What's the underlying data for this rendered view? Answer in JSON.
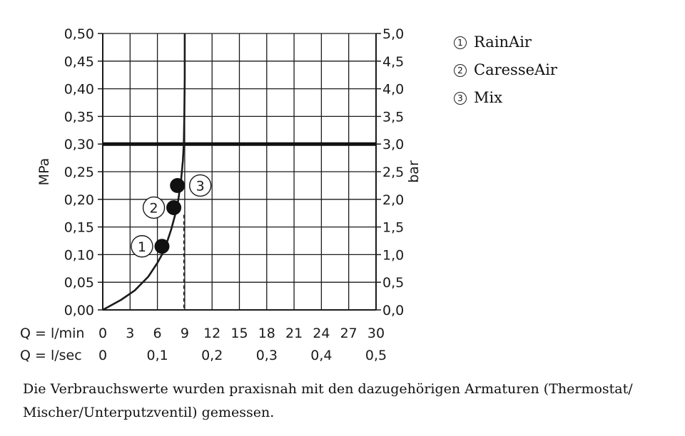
{
  "chart_data": {
    "type": "line",
    "y_axis_left": {
      "label": "MPa",
      "range": [
        0,
        0.5
      ],
      "ticks": [
        "0,00",
        "0,05",
        "0,10",
        "0,15",
        "0,20",
        "0,25",
        "0,30",
        "0,35",
        "0,40",
        "0,45",
        "0,50"
      ]
    },
    "y_axis_right": {
      "label": "bar",
      "range": [
        0,
        5
      ],
      "ticks": [
        "0,0",
        "0,5",
        "1,0",
        "1,5",
        "2,0",
        "2,5",
        "3,0",
        "3,5",
        "4,0",
        "4,5",
        "5,0"
      ]
    },
    "x_axis_min": {
      "label": "Q = l/min",
      "range": [
        0,
        30
      ],
      "ticks": [
        "0",
        "3",
        "6",
        "9",
        "12",
        "15",
        "18",
        "21",
        "24",
        "27",
        "30"
      ]
    },
    "x_axis_sec": {
      "label": "Q = l/sec",
      "ticks": [
        "0",
        "0,1",
        "0,2",
        "0,3",
        "0,4",
        "0,5"
      ],
      "tick_values_lmin": [
        0,
        6,
        12,
        18,
        24,
        30
      ]
    },
    "grid": true,
    "reference_line_mpa": 0.3,
    "series": [
      {
        "x": [
          0,
          2,
          3.5,
          5,
          6,
          6.5,
          7,
          7.5,
          8,
          8.3,
          8.6,
          8.8,
          8.9,
          8.95,
          9.0,
          9.0
        ],
        "y": [
          0.0,
          0.018,
          0.035,
          0.06,
          0.085,
          0.1,
          0.12,
          0.145,
          0.175,
          0.2,
          0.235,
          0.27,
          0.3,
          0.35,
          0.42,
          0.5
        ]
      }
    ],
    "points": [
      {
        "marker": "1",
        "x": 6.5,
        "y": 0.115
      },
      {
        "marker": "2",
        "x": 7.8,
        "y": 0.185
      },
      {
        "marker": "3",
        "x": 8.2,
        "y": 0.225
      }
    ],
    "dashed_drop_x": 8.9
  },
  "legend": [
    {
      "num": "1",
      "label": "RainAir"
    },
    {
      "num": "2",
      "label": "CaresseAir"
    },
    {
      "num": "3",
      "label": "Mix"
    }
  ],
  "caption": [
    "Die Verbrauchswerte wurden praxisnah mit den dazugehörigen Armaturen (Thermostat/",
    "Mischer/Unterputzventil) gemessen."
  ]
}
